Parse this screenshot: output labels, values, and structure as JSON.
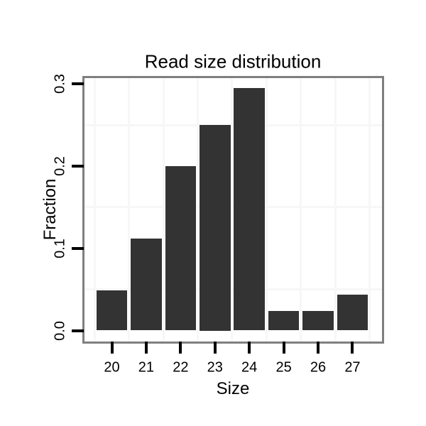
{
  "title": "Read size distribution",
  "x_axis_label": "Size",
  "y_axis_label": "Fraction",
  "chart_data": {
    "type": "bar",
    "title": "Read size distribution",
    "xlabel": "Size",
    "ylabel": "Fraction",
    "categories": [
      "20",
      "21",
      "22",
      "23",
      "24",
      "25",
      "26",
      "27"
    ],
    "values": [
      0.049,
      0.112,
      0.2,
      0.25,
      0.295,
      0.024,
      0.024,
      0.044
    ],
    "x_tick_labels": [
      "20",
      "21",
      "22",
      "23",
      "24",
      "25",
      "26",
      "27"
    ],
    "y_tick_labels": [
      "0.0",
      "0.1",
      "0.2",
      "0.3"
    ],
    "y_tick_values": [
      0.0,
      0.1,
      0.2,
      0.3
    ],
    "y_minor_grid_values": [
      0.05,
      0.15,
      0.25
    ],
    "ylim": [
      -0.013,
      0.307
    ],
    "bar_width_fraction": 0.9,
    "legend": "none",
    "grid": "minor-only",
    "colors": {
      "bar_fill": "#333333",
      "panel_border": "#7f7f7f",
      "grid_minor": "#f7f7f7",
      "tick_mark": "#000000",
      "text": "#000000",
      "background": "#ffffff"
    }
  }
}
